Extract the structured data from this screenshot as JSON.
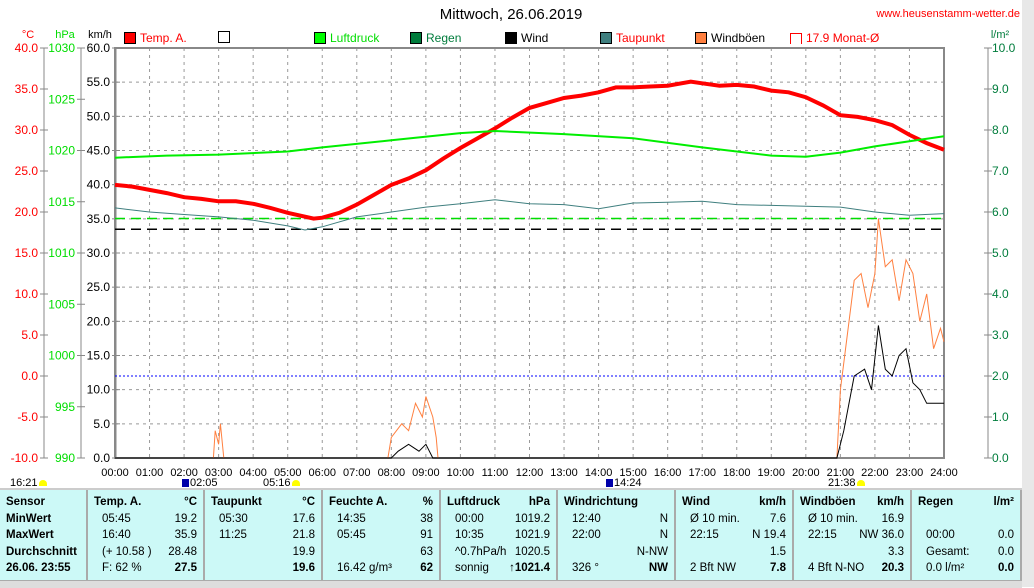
{
  "header": {
    "title": "Mittwoch, 26.06.2019",
    "site": "www.heusenstamm-wetter.de"
  },
  "legend": [
    {
      "label": "Temp. A.",
      "color": "#ff0000",
      "text_color": "#ff0000"
    },
    {
      "label": "",
      "color": "#ffffff",
      "text_color": "#000000"
    },
    {
      "label": "Luftdruck",
      "color": "#00ff00",
      "text_color": "#00dd00"
    },
    {
      "label": "Regen",
      "color": "#007c3c",
      "text_color": "#007c3c"
    },
    {
      "label": "Wind",
      "color": "#000000",
      "text_color": "#000000"
    },
    {
      "label": "Taupunkt",
      "color": "#3f7f7f",
      "text_color": "#ff0000"
    },
    {
      "label": "Windböen",
      "color": "#ff8040",
      "text_color": "#000000"
    },
    {
      "label": "17.9 Monat-Ø",
      "color": "outline",
      "text_color": "#ff0000"
    }
  ],
  "chart_data": {
    "type": "line",
    "title": "Mittwoch, 26.06.2019",
    "x_ticks": [
      "00:00",
      "01:00",
      "02:00",
      "03:00",
      "04:00",
      "05:00",
      "06:00",
      "07:00",
      "08:00",
      "09:00",
      "10:00",
      "11:00",
      "12:00",
      "13:00",
      "14:00",
      "15:00",
      "16:00",
      "17:00",
      "18:00",
      "19:00",
      "20:00",
      "21:00",
      "22:00",
      "23:00",
      "24:00"
    ],
    "axes": {
      "temp": {
        "unit": "°C",
        "range": [
          -10,
          40
        ],
        "ticks": [
          "40.0",
          "35.0",
          "30.0",
          "25.0",
          "20.0",
          "15.0",
          "10.0",
          "5.0",
          "0.0",
          "-5.0",
          "-10.0"
        ],
        "color": "#ff0000"
      },
      "pressure": {
        "unit": "hPa",
        "range": [
          990,
          1030
        ],
        "ticks": [
          "1030",
          "1025",
          "1020",
          "1015",
          "1010",
          "1005",
          "1000",
          "995",
          "990"
        ],
        "color": "#00dd00"
      },
      "wind": {
        "unit": "km/h",
        "range": [
          0,
          60
        ],
        "ticks": [
          "60.0",
          "55.0",
          "50.0",
          "45.0",
          "40.0",
          "35.0",
          "30.0",
          "25.0",
          "20.0",
          "15.0",
          "10.0",
          "5.0",
          "0.0"
        ],
        "color": "#000000"
      },
      "rain": {
        "unit": "l/m²",
        "range": [
          0,
          10
        ],
        "ticks": [
          "10.0",
          "9.0",
          "8.0",
          "7.0",
          "6.0",
          "5.0",
          "4.0",
          "3.0",
          "2.0",
          "1.0",
          "0.0"
        ],
        "color": "#007c3c"
      }
    },
    "series": [
      {
        "name": "Temp. A.",
        "axis": "temp",
        "color": "#ff0000",
        "points": [
          [
            0,
            23.3
          ],
          [
            0.5,
            23.1
          ],
          [
            1,
            22.7
          ],
          [
            1.5,
            22.3
          ],
          [
            2,
            21.8
          ],
          [
            2.5,
            21.6
          ],
          [
            3,
            21.3
          ],
          [
            3.5,
            21.3
          ],
          [
            4,
            21.0
          ],
          [
            4.5,
            20.5
          ],
          [
            5,
            19.9
          ],
          [
            5.75,
            19.2
          ],
          [
            6,
            19.3
          ],
          [
            6.5,
            19.9
          ],
          [
            7,
            20.9
          ],
          [
            7.5,
            22.1
          ],
          [
            8,
            23.3
          ],
          [
            8.5,
            24.1
          ],
          [
            9,
            25.1
          ],
          [
            9.5,
            26.5
          ],
          [
            10,
            27.8
          ],
          [
            10.5,
            29.0
          ],
          [
            11,
            30.2
          ],
          [
            11.5,
            31.5
          ],
          [
            12,
            32.7
          ],
          [
            12.5,
            33.3
          ],
          [
            13,
            33.9
          ],
          [
            13.5,
            34.2
          ],
          [
            14,
            34.6
          ],
          [
            14.5,
            35.2
          ],
          [
            15,
            35.2
          ],
          [
            15.5,
            35.3
          ],
          [
            16,
            35.4
          ],
          [
            16.67,
            35.9
          ],
          [
            17,
            35.7
          ],
          [
            17.5,
            35.4
          ],
          [
            18,
            35.5
          ],
          [
            18.5,
            35.3
          ],
          [
            19,
            34.8
          ],
          [
            19.5,
            34.6
          ],
          [
            20,
            34.0
          ],
          [
            20.5,
            33.0
          ],
          [
            21,
            31.8
          ],
          [
            21.5,
            31.6
          ],
          [
            22,
            31.2
          ],
          [
            22.5,
            30.6
          ],
          [
            23,
            29.4
          ],
          [
            23.5,
            28.4
          ],
          [
            24,
            27.6
          ]
        ]
      },
      {
        "name": "Luftdruck",
        "axis": "pressure",
        "color": "#00ee00",
        "points": [
          [
            0,
            1019.3
          ],
          [
            1.5,
            1019.5
          ],
          [
            3,
            1019.6
          ],
          [
            5,
            1019.9
          ],
          [
            6,
            1020.3
          ],
          [
            8,
            1021.0
          ],
          [
            10,
            1021.7
          ],
          [
            11,
            1021.9
          ],
          [
            13,
            1021.6
          ],
          [
            15,
            1021.2
          ],
          [
            17,
            1020.3
          ],
          [
            19,
            1019.5
          ],
          [
            20,
            1019.4
          ],
          [
            21,
            1019.8
          ],
          [
            22,
            1020.4
          ],
          [
            23,
            1020.9
          ],
          [
            24,
            1021.4
          ]
        ]
      },
      {
        "name": "Taupunkt",
        "axis": "temp",
        "color": "#3f7f7f",
        "points": [
          [
            0,
            20.5
          ],
          [
            1,
            20.0
          ],
          [
            2,
            19.7
          ],
          [
            3,
            19.4
          ],
          [
            4,
            19.0
          ],
          [
            5,
            18.3
          ],
          [
            5.5,
            17.8
          ],
          [
            6,
            18.2
          ],
          [
            7,
            19.4
          ],
          [
            8,
            20.0
          ],
          [
            9,
            20.6
          ],
          [
            10,
            21.0
          ],
          [
            11,
            21.5
          ],
          [
            12,
            21.0
          ],
          [
            13,
            20.9
          ],
          [
            14,
            20.4
          ],
          [
            15,
            21.1
          ],
          [
            16,
            21.2
          ],
          [
            17,
            21.3
          ],
          [
            18,
            20.9
          ],
          [
            19,
            20.8
          ],
          [
            20,
            20.7
          ],
          [
            21,
            20.6
          ],
          [
            22,
            20.0
          ],
          [
            23,
            19.6
          ],
          [
            24,
            19.8
          ]
        ]
      },
      {
        "name": "Windböen",
        "axis": "wind",
        "color": "#ff8040",
        "points": [
          [
            0,
            0
          ],
          [
            2.85,
            0
          ],
          [
            2.9,
            4
          ],
          [
            3,
            2
          ],
          [
            3.05,
            5
          ],
          [
            3.15,
            0
          ],
          [
            7.9,
            0
          ],
          [
            8,
            3
          ],
          [
            8.3,
            5
          ],
          [
            8.5,
            4
          ],
          [
            8.7,
            8
          ],
          [
            8.9,
            6
          ],
          [
            9,
            9
          ],
          [
            9.2,
            6
          ],
          [
            9.3,
            3
          ],
          [
            9.35,
            0
          ],
          [
            20.9,
            0
          ],
          [
            21,
            10
          ],
          [
            21.2,
            18
          ],
          [
            21.4,
            26
          ],
          [
            21.6,
            27
          ],
          [
            21.8,
            22
          ],
          [
            22,
            27
          ],
          [
            22.1,
            35
          ],
          [
            22.3,
            28
          ],
          [
            22.5,
            29
          ],
          [
            22.7,
            23
          ],
          [
            22.9,
            29
          ],
          [
            23.1,
            27
          ],
          [
            23.3,
            20
          ],
          [
            23.5,
            24
          ],
          [
            23.7,
            16
          ],
          [
            23.9,
            19
          ],
          [
            24,
            17
          ]
        ]
      },
      {
        "name": "Wind",
        "axis": "wind",
        "color": "#000000",
        "points": [
          [
            0,
            0
          ],
          [
            8,
            0
          ],
          [
            8.2,
            1
          ],
          [
            8.5,
            2
          ],
          [
            8.8,
            1
          ],
          [
            9,
            2
          ],
          [
            9.2,
            0
          ],
          [
            20.9,
            0
          ],
          [
            21.1,
            4
          ],
          [
            21.4,
            12
          ],
          [
            21.7,
            13
          ],
          [
            21.9,
            10
          ],
          [
            22.1,
            19.4
          ],
          [
            22.3,
            13
          ],
          [
            22.5,
            12
          ],
          [
            22.7,
            15
          ],
          [
            22.9,
            16
          ],
          [
            23.1,
            11
          ],
          [
            23.3,
            10
          ],
          [
            23.5,
            8
          ],
          [
            23.7,
            8
          ],
          [
            24,
            8
          ]
        ]
      }
    ],
    "reference_lines": [
      {
        "name": "Monat-Ø",
        "axis": "temp",
        "value": 17.9,
        "color": "#000000"
      },
      {
        "name": "min-temp",
        "axis": "temp",
        "value": 19.2,
        "color": "#00dd00"
      },
      {
        "name": "zero",
        "axis": "temp",
        "value": 0,
        "color": "#0000ff"
      }
    ]
  },
  "markers": [
    {
      "time": "16:21",
      "icon": "sun-icon"
    },
    {
      "time": "02:05",
      "icon": "moon-icon"
    },
    {
      "time": "05:16",
      "icon": "sun-icon"
    },
    {
      "time": "14:24",
      "icon": "moon-icon"
    },
    {
      "time": "21:38",
      "icon": "sun-icon"
    }
  ],
  "table": [
    {
      "w": 88,
      "rows": [
        [
          "Sensor",
          ""
        ],
        [
          "MinWert",
          ""
        ],
        [
          "MaxWert",
          ""
        ],
        [
          "Durchschnitt",
          ""
        ],
        [
          "26.06. 23:55",
          ""
        ]
      ],
      "bold_first": true
    },
    {
      "w": 117,
      "rows": [
        [
          "Temp. A.",
          "°C"
        ],
        [
          "05:45",
          "19.2"
        ],
        [
          "16:40",
          "35.9"
        ],
        [
          "(+ 10.58 )",
          "28.48"
        ],
        [
          "F: 62 %",
          "27.5"
        ]
      ]
    },
    {
      "w": 118,
      "rows": [
        [
          "Taupunkt",
          "°C"
        ],
        [
          "05:30",
          "17.6"
        ],
        [
          "11:25",
          "21.8"
        ],
        [
          "",
          "19.9"
        ],
        [
          "",
          "19.6"
        ]
      ]
    },
    {
      "w": 118,
      "rows": [
        [
          "Feuchte A.",
          "%"
        ],
        [
          "14:35",
          "38"
        ],
        [
          "05:45",
          "91"
        ],
        [
          "",
          "63"
        ],
        [
          "16.42 g/m³",
          "62"
        ]
      ]
    },
    {
      "w": 117,
      "rows": [
        [
          "Luftdruck",
          "hPa"
        ],
        [
          "00:00",
          "1019.2"
        ],
        [
          "10:35",
          "1021.9"
        ],
        [
          "^0.7hPa/h",
          "1020.5"
        ],
        [
          "sonnig",
          "↑1021.4"
        ]
      ]
    },
    {
      "w": 118,
      "rows": [
        [
          "Windrichtung",
          ""
        ],
        [
          "12:40",
          "N"
        ],
        [
          "22:00",
          "N"
        ],
        [
          "",
          "N-NW"
        ],
        [
          "326 °",
          "NW"
        ]
      ]
    },
    {
      "w": 118,
      "rows": [
        [
          "Wind",
          "km/h"
        ],
        [
          "Ø 10 min.",
          "7.6"
        ],
        [
          "22:15",
          "N 19.4"
        ],
        [
          "",
          "1.5"
        ],
        [
          "2 Bft NW",
          "7.8"
        ]
      ]
    },
    {
      "w": 118,
      "rows": [
        [
          "Windböen",
          "km/h"
        ],
        [
          "Ø 10 min.",
          "16.9"
        ],
        [
          "22:15",
          "NW 36.0"
        ],
        [
          "",
          "3.3"
        ],
        [
          "4 Bft N-NO",
          "20.3"
        ]
      ]
    },
    {
      "w": 110,
      "rows": [
        [
          "Regen",
          "l/m²"
        ],
        [
          "",
          ""
        ],
        [
          "00:00",
          "0.0"
        ],
        [
          "Gesamt:",
          "0.0"
        ],
        [
          "0.0 l/m²",
          "0.0"
        ]
      ]
    }
  ]
}
